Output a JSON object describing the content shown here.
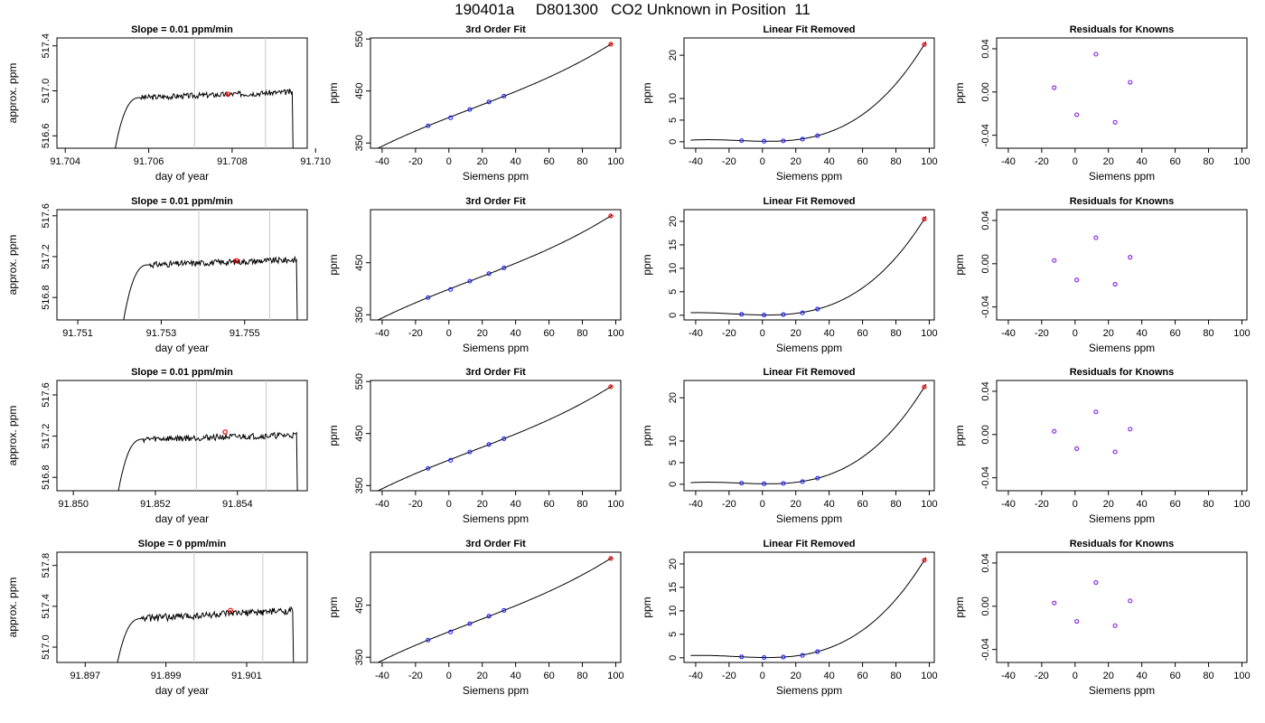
{
  "page": {
    "title": "190401a     D801300   CO2 Unknown in Position  11"
  },
  "colors": {
    "known_points": "#1a1aff",
    "unknown_point": "#ff0000",
    "residual_points": "#8a2be2",
    "reference_lines": "#c8c8c8",
    "curve": "#000000"
  },
  "chart_data": [
    {
      "id": "r0c0",
      "type": "line",
      "title": "Slope =  0.01  ppm/min",
      "xlabel": "day of year",
      "ylabel": "approx. ppm",
      "xlim": [
        91.7038,
        91.7098
      ],
      "ylim": [
        516.49,
        517.47
      ],
      "xticks": [
        "91.704",
        "91.706",
        "91.708",
        "91.710"
      ],
      "yticks": [
        "516.6",
        "517.0",
        "517.4"
      ],
      "vlines": [
        91.7071,
        91.7088
      ],
      "marker": {
        "x": 91.7079,
        "y": 516.97
      },
      "trace": {
        "start": 91.7052,
        "end": 91.7095,
        "rise_end": 91.7058,
        "base": 516.49,
        "level": 516.94,
        "plateau_end": 516.99,
        "noise": 0.025
      }
    },
    {
      "id": "r0c1",
      "type": "line",
      "title": "3rd Order Fit",
      "xlabel": "Siemens ppm",
      "ylabel": "ppm",
      "xlim": [
        -47,
        103
      ],
      "ylim": [
        340,
        552
      ],
      "xticks": [
        "-40",
        "-20",
        "0",
        "20",
        "40",
        "60",
        "80",
        "100"
      ],
      "yticks": [
        "350",
        "450",
        "550"
      ],
      "knowns": [
        [
          -12.5,
          383
        ],
        [
          1,
          398.5
        ],
        [
          12.5,
          414.5
        ],
        [
          24,
          429
        ],
        [
          33,
          440
        ]
      ],
      "unknown": [
        97,
        540
      ]
    },
    {
      "id": "r0c2",
      "type": "line",
      "title": "Linear Fit Removed",
      "xlabel": "Siemens ppm",
      "ylabel": "ppm",
      "xlim": [
        -47,
        103
      ],
      "ylim": [
        -1.5,
        24
      ],
      "xticks": [
        "-40",
        "-20",
        "0",
        "20",
        "40",
        "60",
        "80",
        "100"
      ],
      "yticks": [
        "0",
        "5",
        "10",
        "20"
      ],
      "knowns": [
        [
          -12.5,
          0.25
        ],
        [
          1,
          0.1
        ],
        [
          12.5,
          0.2
        ],
        [
          24,
          0.6
        ],
        [
          33,
          1.4
        ]
      ],
      "unknown": [
        97,
        22.5
      ]
    },
    {
      "id": "r0c3",
      "type": "scatter",
      "title": "Residuals for Knowns",
      "xlabel": "Siemens ppm",
      "ylabel": "ppm",
      "xlim": [
        -47,
        103
      ],
      "ylim": [
        -0.052,
        0.05
      ],
      "xticks": [
        "-40",
        "-20",
        "0",
        "20",
        "40",
        "60",
        "80",
        "100"
      ],
      "yticks": [
        "-0.04",
        "0.00",
        "0.04"
      ],
      "points": [
        [
          -12.5,
          0.004
        ],
        [
          1,
          -0.021
        ],
        [
          12.5,
          0.035
        ],
        [
          24,
          -0.028
        ],
        [
          33,
          0.009
        ]
      ]
    },
    {
      "id": "r1c0",
      "type": "line",
      "title": "Slope =  0.01  ppm/min",
      "xlabel": "day of year",
      "ylabel": "approx. ppm",
      "xlim": [
        91.7505,
        91.7565
      ],
      "ylim": [
        516.58,
        517.66
      ],
      "xticks": [
        "91.751",
        "91.753",
        "91.755"
      ],
      "yticks": [
        "516.8",
        "517.2",
        "517.6"
      ],
      "vlines": [
        91.7539,
        91.7556
      ],
      "marker": {
        "x": 91.7548,
        "y": 517.16
      },
      "trace": {
        "start": 91.7521,
        "end": 91.7563,
        "rise_end": 91.7527,
        "base": 516.58,
        "level": 517.12,
        "plateau_end": 517.17,
        "noise": 0.03
      }
    },
    {
      "id": "r1c1",
      "type": "line",
      "title": "3rd Order Fit",
      "xlabel": "Siemens ppm",
      "ylabel": "ppm",
      "xlim": [
        -47,
        103
      ],
      "ylim": [
        340,
        552
      ],
      "xticks": [
        "-40",
        "-20",
        "0",
        "20",
        "40",
        "60",
        "80",
        "100"
      ],
      "yticks": [
        "350",
        "450"
      ],
      "knowns": [
        [
          -12.5,
          383
        ],
        [
          1,
          398.5
        ],
        [
          12.5,
          414.5
        ],
        [
          24,
          429
        ],
        [
          33,
          440
        ]
      ],
      "unknown": [
        97,
        540
      ]
    },
    {
      "id": "r1c2",
      "type": "line",
      "title": "Linear Fit Removed",
      "xlabel": "Siemens ppm",
      "ylabel": "ppm",
      "xlim": [
        -47,
        103
      ],
      "ylim": [
        -1,
        22.5
      ],
      "xticks": [
        "-40",
        "-20",
        "0",
        "20",
        "40",
        "60",
        "80",
        "100"
      ],
      "yticks": [
        "0",
        "5",
        "10",
        "15",
        "20"
      ],
      "knowns": [
        [
          -12.5,
          0.2
        ],
        [
          1,
          0.05
        ],
        [
          12.5,
          0.15
        ],
        [
          24,
          0.5
        ],
        [
          33,
          1.3
        ]
      ],
      "unknown": [
        97,
        20.5
      ]
    },
    {
      "id": "r1c3",
      "type": "scatter",
      "title": "Residuals for Knowns",
      "xlabel": "Siemens ppm",
      "ylabel": "ppm",
      "xlim": [
        -47,
        103
      ],
      "ylim": [
        -0.052,
        0.05
      ],
      "xticks": [
        "-40",
        "-20",
        "0",
        "20",
        "40",
        "60",
        "80",
        "100"
      ],
      "yticks": [
        "-0.04",
        "0.00",
        "0.04"
      ],
      "points": [
        [
          -12.5,
          0.003
        ],
        [
          1,
          -0.015
        ],
        [
          12.5,
          0.024
        ],
        [
          24,
          -0.019
        ],
        [
          33,
          0.006
        ]
      ]
    },
    {
      "id": "r2c0",
      "type": "line",
      "title": "Slope =  0.01  ppm/min",
      "xlabel": "day of year",
      "ylabel": "approx. ppm",
      "xlim": [
        91.8496,
        91.8557
      ],
      "ylim": [
        516.67,
        517.74
      ],
      "xticks": [
        "91.850",
        "91.852",
        "91.854"
      ],
      "yticks": [
        "516.8",
        "517.2",
        "517.6"
      ],
      "vlines": [
        91.853,
        91.8547
      ],
      "marker": {
        "x": 91.8537,
        "y": 517.24
      },
      "trace": {
        "start": 91.8511,
        "end": 91.8555,
        "rise_end": 91.8517,
        "base": 516.67,
        "level": 517.17,
        "plateau_end": 517.21,
        "noise": 0.03
      }
    },
    {
      "id": "r2c1",
      "type": "line",
      "title": "3rd Order Fit",
      "xlabel": "Siemens ppm",
      "ylabel": "ppm",
      "xlim": [
        -47,
        103
      ],
      "ylim": [
        340,
        552
      ],
      "xticks": [
        "-40",
        "-20",
        "0",
        "20",
        "40",
        "60",
        "80",
        "100"
      ],
      "yticks": [
        "350",
        "450",
        "550"
      ],
      "knowns": [
        [
          -12.5,
          383
        ],
        [
          1,
          398.5
        ],
        [
          12.5,
          414.5
        ],
        [
          24,
          429
        ],
        [
          33,
          440
        ]
      ],
      "unknown": [
        97,
        540
      ]
    },
    {
      "id": "r2c2",
      "type": "line",
      "title": "Linear Fit Removed",
      "xlabel": "Siemens ppm",
      "ylabel": "ppm",
      "xlim": [
        -47,
        103
      ],
      "ylim": [
        -1.5,
        24
      ],
      "xticks": [
        "-40",
        "-20",
        "0",
        "20",
        "40",
        "60",
        "80",
        "100"
      ],
      "yticks": [
        "0",
        "5",
        "10",
        "20"
      ],
      "knowns": [
        [
          -12.5,
          0.25
        ],
        [
          1,
          0.1
        ],
        [
          12.5,
          0.2
        ],
        [
          24,
          0.6
        ],
        [
          33,
          1.4
        ]
      ],
      "unknown": [
        97,
        22.5
      ]
    },
    {
      "id": "r2c3",
      "type": "scatter",
      "title": "Residuals for Knowns",
      "xlabel": "Siemens ppm",
      "ylabel": "ppm",
      "xlim": [
        -47,
        103
      ],
      "ylim": [
        -0.052,
        0.05
      ],
      "xticks": [
        "-40",
        "-20",
        "0",
        "20",
        "40",
        "60",
        "80",
        "100"
      ],
      "yticks": [
        "-0.04",
        "0.00",
        "0.04"
      ],
      "points": [
        [
          -12.5,
          0.003
        ],
        [
          1,
          -0.013
        ],
        [
          12.5,
          0.021
        ],
        [
          24,
          -0.016
        ],
        [
          33,
          0.005
        ]
      ]
    },
    {
      "id": "r3c0",
      "type": "line",
      "title": "Slope =  0  ppm/min",
      "xlabel": "day of year",
      "ylabel": "approx. ppm",
      "xlim": [
        91.8963,
        91.9025
      ],
      "ylim": [
        516.85,
        517.93
      ],
      "xticks": [
        "91.897",
        "91.899",
        "91.901"
      ],
      "yticks": [
        "517.0",
        "517.4",
        "517.8"
      ],
      "vlines": [
        91.8997,
        91.9014
      ],
      "marker": {
        "x": 91.9006,
        "y": 517.36
      },
      "trace": {
        "start": 91.8978,
        "end": 91.9022,
        "rise_end": 91.8984,
        "base": 516.85,
        "level": 517.28,
        "plateau_end": 517.36,
        "noise": 0.035
      }
    },
    {
      "id": "r3c1",
      "type": "line",
      "title": "3rd Order Fit",
      "xlabel": "Siemens ppm",
      "ylabel": "ppm",
      "xlim": [
        -47,
        103
      ],
      "ylim": [
        340,
        552
      ],
      "xticks": [
        "-40",
        "-20",
        "0",
        "20",
        "40",
        "60",
        "80",
        "100"
      ],
      "yticks": [
        "350",
        "450"
      ],
      "knowns": [
        [
          -12.5,
          383
        ],
        [
          1,
          398.5
        ],
        [
          12.5,
          414.5
        ],
        [
          24,
          429
        ],
        [
          33,
          440
        ]
      ],
      "unknown": [
        97,
        540
      ]
    },
    {
      "id": "r3c2",
      "type": "line",
      "title": "Linear Fit Removed",
      "xlabel": "Siemens ppm",
      "ylabel": "ppm",
      "xlim": [
        -47,
        103
      ],
      "ylim": [
        -1,
        22.5
      ],
      "xticks": [
        "-40",
        "-20",
        "0",
        "20",
        "40",
        "60",
        "80",
        "100"
      ],
      "yticks": [
        "0",
        "5",
        "10",
        "15",
        "20"
      ],
      "knowns": [
        [
          -12.5,
          0.2
        ],
        [
          1,
          0.05
        ],
        [
          12.5,
          0.15
        ],
        [
          24,
          0.5
        ],
        [
          33,
          1.3
        ]
      ],
      "unknown": [
        97,
        20.8
      ]
    },
    {
      "id": "r3c3",
      "type": "scatter",
      "title": "Residuals for Knowns",
      "xlabel": "Siemens ppm",
      "ylabel": "ppm",
      "xlim": [
        -47,
        103
      ],
      "ylim": [
        -0.052,
        0.05
      ],
      "xticks": [
        "-40",
        "-20",
        "0",
        "20",
        "40",
        "60",
        "80",
        "100"
      ],
      "yticks": [
        "-0.04",
        "0.00",
        "0.04"
      ],
      "points": [
        [
          -12.5,
          0.003
        ],
        [
          1,
          -0.014
        ],
        [
          12.5,
          0.022
        ],
        [
          24,
          -0.018
        ],
        [
          33,
          0.005
        ]
      ]
    }
  ]
}
